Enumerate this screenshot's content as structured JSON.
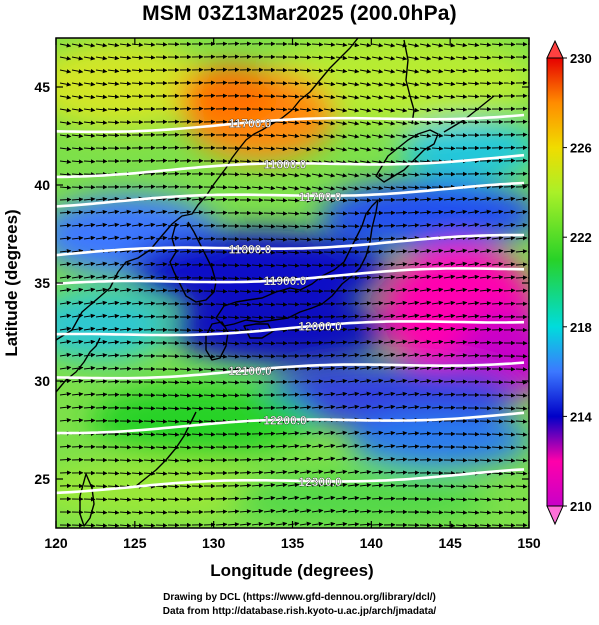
{
  "title": "MSM 03Z13Mar2025 (200.0hPa)",
  "x_axis": {
    "label": "Longitude (degrees)",
    "ticks": [
      "120",
      "125",
      "130",
      "135",
      "140",
      "145",
      "150"
    ],
    "range": [
      120,
      150
    ]
  },
  "y_axis": {
    "label": "Latitude  (degrees)",
    "ticks": [
      "25",
      "30",
      "35",
      "40",
      "45"
    ],
    "range": [
      22.5,
      47.5
    ]
  },
  "colorbar": {
    "ticks": [
      "210",
      "214",
      "218",
      "222",
      "226",
      "230"
    ],
    "range": [
      210,
      230
    ],
    "colors": [
      "#c800c8",
      "#ff00aa",
      "#0000c8",
      "#3c78ff",
      "#00dcdc",
      "#28d228",
      "#aaf028",
      "#f0dc00",
      "#ff8c00",
      "#e60000"
    ]
  },
  "contours": [
    {
      "label": "11700.0",
      "lat": 43.2
    },
    {
      "label": "11600.0",
      "lat": 41.0
    },
    {
      "label": "11700.0",
      "lat": 39.5
    },
    {
      "label": "11800.0",
      "lat": 36.9
    },
    {
      "label": "11900.0",
      "lat": 35.3
    },
    {
      "label": "12000.0",
      "lat": 32.7
    },
    {
      "label": "12100.0",
      "lat": 30.6
    },
    {
      "label": "12200.0",
      "lat": 27.9
    },
    {
      "label": "12300.0",
      "lat": 24.9
    }
  ],
  "footer": {
    "line1": "Drawing by DCL (https://www.gfd-dennou.org/library/dcl/)",
    "line2": "Data from http://database.rish.kyoto-u.ac.jp/arch/jmadata/"
  }
}
